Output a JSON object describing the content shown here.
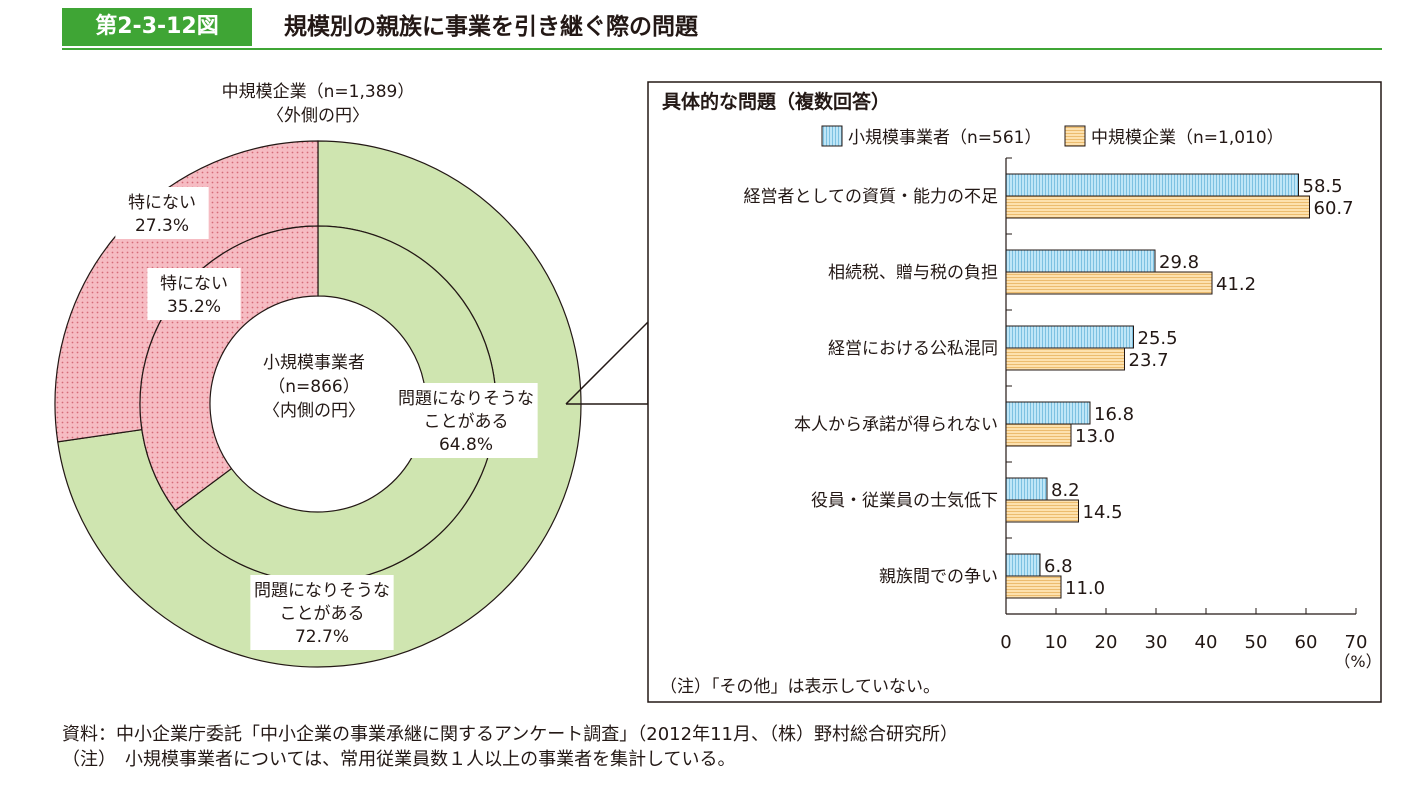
{
  "header": {
    "figure_number": "第2-3-12図",
    "title": "規模別の親族に事業を引き継ぐ際の問題"
  },
  "colors": {
    "accent": "#3fa535",
    "problem": "#cfe5b0",
    "none": "#f5b8bf",
    "small": "#bfe6f7",
    "medium": "#fde1ae"
  },
  "chart_data": [
    {
      "type": "pie",
      "title": "",
      "outer": {
        "label": "中規模企業（n=1,389）",
        "sublabel": "〈外側の円〉",
        "slices": [
          {
            "name": "問題になりそうなことがある",
            "value": 72.7,
            "lines": [
              "問題になりそうな",
              "ことがある",
              "72.7%"
            ]
          },
          {
            "name": "特にない",
            "value": 27.3,
            "lines": [
              "特にない",
              "27.3%"
            ]
          }
        ]
      },
      "inner": {
        "label_lines": [
          "小規模事業者",
          "（n=866）",
          "〈内側の円〉"
        ],
        "slices": [
          {
            "name": "問題になりそうなことがある",
            "value": 64.8,
            "lines": [
              "問題になりそうな",
              "ことがある",
              "64.8%"
            ]
          },
          {
            "name": "特にない",
            "value": 35.2,
            "lines": [
              "特にない",
              "35.2%"
            ]
          }
        ]
      }
    },
    {
      "type": "bar",
      "orientation": "horizontal",
      "title": "具体的な問題（複数回答）",
      "categories": [
        "経営者としての資質・能力の不足",
        "相続税、贈与税の負担",
        "経営における公私混同",
        "本人から承諾が得られない",
        "役員・従業員の士気低下",
        "親族間での争い"
      ],
      "series": [
        {
          "name": "小規模事業者（n=561）",
          "values": [
            58.5,
            29.8,
            25.5,
            16.8,
            8.2,
            6.8
          ]
        },
        {
          "name": "中規模企業（n=1,010）",
          "values": [
            60.7,
            41.2,
            23.7,
            13.0,
            14.5,
            11.0
          ]
        }
      ],
      "xlim": [
        0,
        70
      ],
      "xticks": [
        0,
        10,
        20,
        30,
        40,
        50,
        60,
        70
      ],
      "xunit": "（%）",
      "legend": "top",
      "note": "（注）「その他」は表示していない。"
    }
  ],
  "footer": {
    "source": "資料：中小企業庁委託「中小企業の事業承継に関するアンケート調査」（2012年11月、（株）野村総合研究所）",
    "note": "（注）　小規模事業者については、常用従業員数１人以上の事業者を集計している。"
  }
}
